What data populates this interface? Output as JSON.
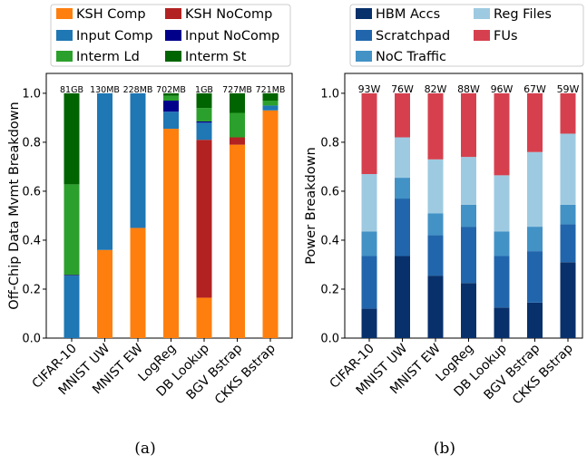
{
  "chart_data": [
    {
      "type": "bar",
      "stacked": true,
      "subcaption": "(a)",
      "ylabel": "Off-Chip Data Mvmt Breakdown",
      "ylim": [
        0,
        1.0
      ],
      "yticks": [
        "0.0",
        "0.2",
        "0.4",
        "0.6",
        "0.8",
        "1.0"
      ],
      "categories": [
        "CIFAR-10",
        "MNIST UW",
        "MNIST EW",
        "LogReg",
        "DB Lookup",
        "BGV Bstrap",
        "CKKS Bstrap"
      ],
      "top_labels": [
        "81GB",
        "130MB",
        "228MB",
        "702MB",
        "1GB",
        "727MB",
        "721MB"
      ],
      "legend_placement": "top (outside)",
      "series": [
        {
          "name": "KSH Comp",
          "color": "#ff7f0e",
          "values": [
            0.0,
            0.36,
            0.45,
            0.855,
            0.165,
            0.79,
            0.93
          ]
        },
        {
          "name": "KSH NoComp",
          "color": "#b22222",
          "values": [
            0.0,
            0.0,
            0.0,
            0.0,
            0.645,
            0.03,
            0.0
          ]
        },
        {
          "name": "Input Comp",
          "color": "#1f77b4",
          "values": [
            0.255,
            0.64,
            0.55,
            0.07,
            0.07,
            0.0,
            0.02
          ]
        },
        {
          "name": "Input NoComp",
          "color": "#00008b",
          "values": [
            0.003,
            0.0,
            0.0,
            0.045,
            0.005,
            0.0,
            0.0
          ]
        },
        {
          "name": "Interm Ld",
          "color": "#2ca02c",
          "values": [
            0.37,
            0.0,
            0.0,
            0.02,
            0.055,
            0.1,
            0.02
          ]
        },
        {
          "name": "Interm St",
          "color": "#006400",
          "values": [
            0.372,
            0.0,
            0.0,
            0.01,
            0.06,
            0.08,
            0.03
          ]
        }
      ]
    },
    {
      "type": "bar",
      "stacked": true,
      "subcaption": "(b)",
      "ylabel": "Power Breakdown",
      "ylim": [
        0,
        1.0
      ],
      "yticks": [
        "0.0",
        "0.2",
        "0.4",
        "0.6",
        "0.8",
        "1.0"
      ],
      "categories": [
        "CIFAR-10",
        "MNIST UW",
        "MNIST EW",
        "LogReg",
        "DB Lookup",
        "BGV Bstrap",
        "CKKS Bstrap"
      ],
      "top_labels": [
        "93W",
        "76W",
        "82W",
        "88W",
        "96W",
        "67W",
        "59W"
      ],
      "legend_placement": "top (outside)",
      "series": [
        {
          "name": "HBM Accs",
          "color": "#08306b",
          "values": [
            0.12,
            0.335,
            0.255,
            0.225,
            0.125,
            0.145,
            0.31
          ]
        },
        {
          "name": "Scratchpad",
          "color": "#2166ac",
          "values": [
            0.215,
            0.235,
            0.165,
            0.23,
            0.21,
            0.21,
            0.155
          ]
        },
        {
          "name": "NoC Traffic",
          "color": "#4292c6",
          "values": [
            0.1,
            0.085,
            0.09,
            0.09,
            0.1,
            0.1,
            0.08
          ]
        },
        {
          "name": "Reg Files",
          "color": "#9ecae1",
          "values": [
            0.235,
            0.165,
            0.22,
            0.195,
            0.23,
            0.305,
            0.29
          ]
        },
        {
          "name": "FUs",
          "color": "#d6404e",
          "values": [
            0.33,
            0.18,
            0.27,
            0.26,
            0.335,
            0.24,
            0.165
          ]
        }
      ]
    }
  ]
}
